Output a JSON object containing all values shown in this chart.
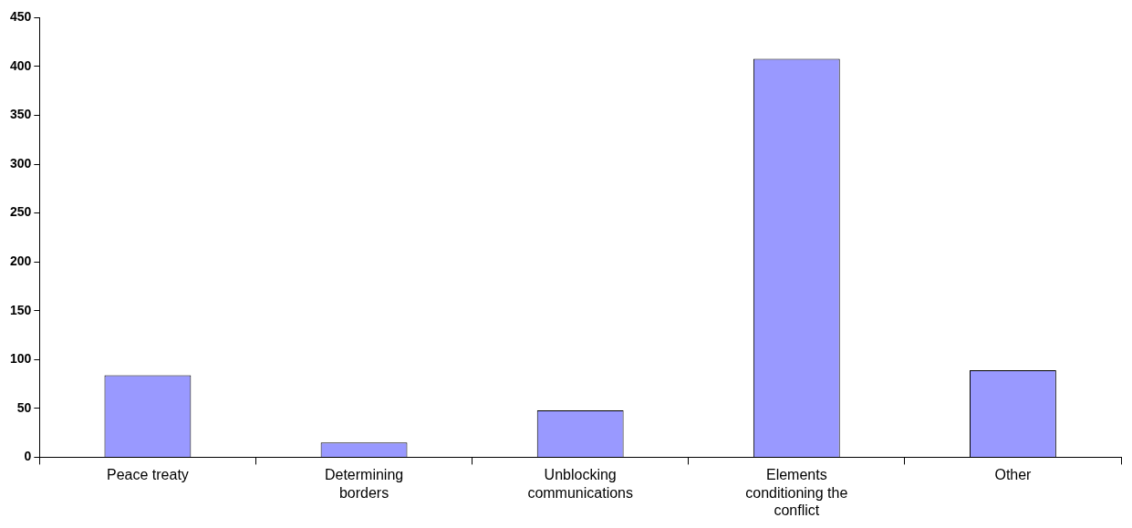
{
  "chart_data": {
    "type": "bar",
    "categories": [
      "Peace treaty",
      "Determining borders",
      "Unblocking communications",
      "Elements conditioning the conflict",
      "Other"
    ],
    "values": [
      84,
      15,
      48,
      408,
      89
    ],
    "color": "#9999ff",
    "ylim": [
      0,
      450
    ],
    "yticks": [
      0,
      50,
      100,
      150,
      200,
      250,
      300,
      350,
      400,
      450
    ],
    "grid": false
  }
}
